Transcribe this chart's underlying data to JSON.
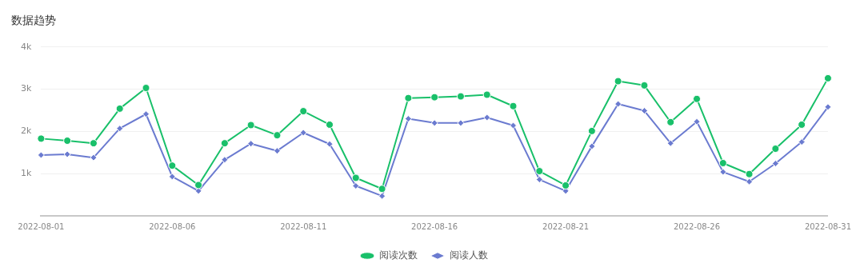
{
  "chart_data": {
    "type": "line",
    "title": "数据趋势",
    "categories": [
      "2022-08-01",
      null,
      null,
      null,
      null,
      "2022-08-06",
      null,
      null,
      null,
      null,
      "2022-08-11",
      null,
      null,
      null,
      null,
      "2022-08-16",
      null,
      null,
      null,
      null,
      "2022-08-21",
      null,
      null,
      null,
      null,
      "2022-08-26",
      null,
      null,
      null,
      null,
      "2022-08-31"
    ],
    "series": [
      {
        "name": "阅读次数",
        "color": "#19c06a",
        "marker": "circle",
        "values": [
          1830,
          1780,
          1720,
          2540,
          3030,
          1190,
          730,
          1720,
          2150,
          1910,
          2480,
          2160,
          900,
          640,
          2790,
          2810,
          2830,
          2870,
          2600,
          1060,
          720,
          2010,
          3190,
          3090,
          2220,
          2770,
          1250,
          990,
          1590,
          2160,
          3260
        ]
      },
      {
        "name": "阅读人数",
        "color": "#6b7bd0",
        "marker": "diamond",
        "values": [
          1440,
          1460,
          1380,
          2070,
          2410,
          930,
          590,
          1330,
          1710,
          1540,
          1970,
          1700,
          710,
          470,
          2300,
          2200,
          2200,
          2330,
          2140,
          860,
          590,
          1650,
          2650,
          2490,
          1720,
          2230,
          1040,
          810,
          1240,
          1750,
          2580
        ]
      }
    ],
    "ylim": [
      0,
      4000
    ],
    "yticks": [
      {
        "value": 1000,
        "label": "1k"
      },
      {
        "value": 2000,
        "label": "2k"
      },
      {
        "value": 3000,
        "label": "3k"
      },
      {
        "value": 4000,
        "label": "4k"
      }
    ],
    "grid": "y",
    "legend": "bottom",
    "line_style": "solid"
  }
}
